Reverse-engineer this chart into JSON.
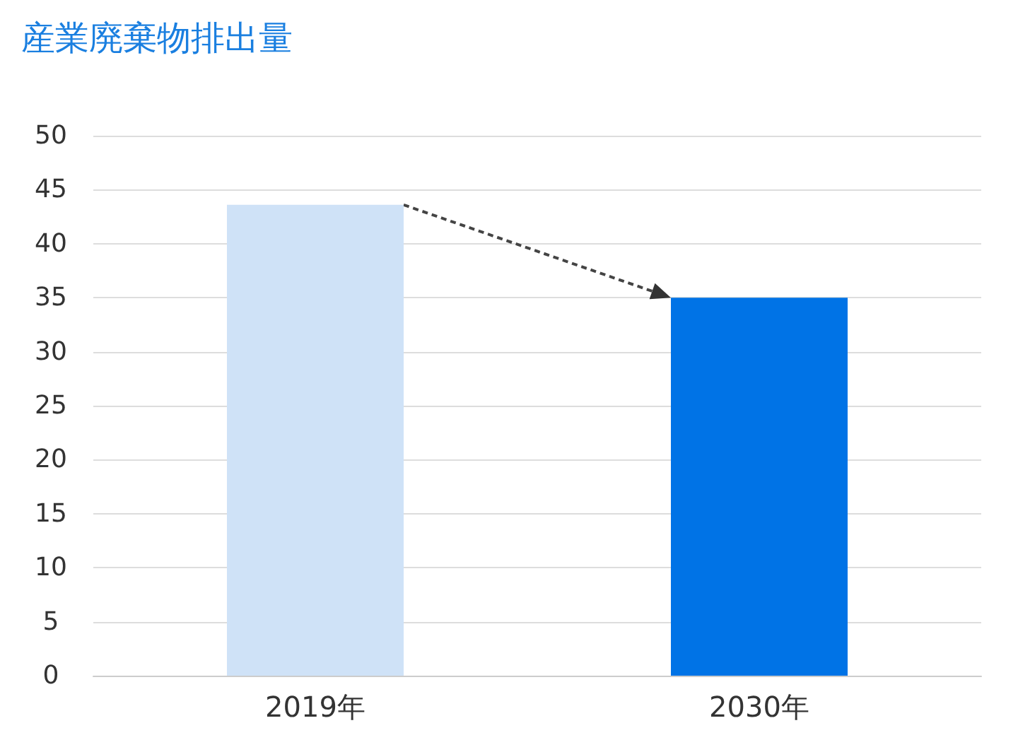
{
  "chart_data": {
    "type": "bar",
    "title": "産業廃棄物排出量",
    "categories": [
      "2019年",
      "2030年"
    ],
    "values": [
      43.6,
      35
    ],
    "colors": [
      "#cfe2f7",
      "#0073e6"
    ],
    "ylim": [
      0,
      50
    ],
    "yticks": [
      0,
      5,
      10,
      15,
      20,
      25,
      30,
      35,
      40,
      45,
      50
    ],
    "grid": "y"
  }
}
